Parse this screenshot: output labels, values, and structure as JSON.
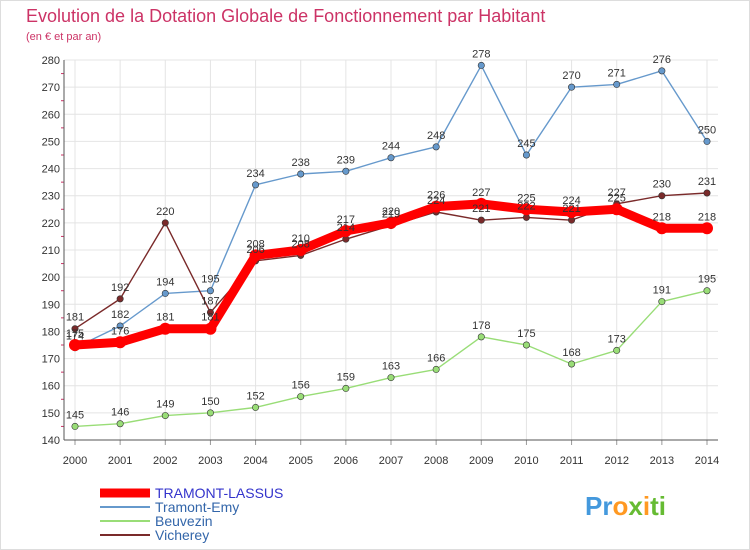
{
  "chart_data": {
    "type": "line",
    "title": "Evolution de la Dotation Globale de Fonctionnement par Habitant",
    "subtitle": "(en € et par an)",
    "xlabel": "",
    "ylabel": "",
    "categories": [
      "2000",
      "2001",
      "2002",
      "2003",
      "2004",
      "2005",
      "2006",
      "2007",
      "2008",
      "2009",
      "2010",
      "2011",
      "2012",
      "2013",
      "2014"
    ],
    "ylim": [
      140,
      280
    ],
    "yticks": [
      140,
      150,
      160,
      170,
      180,
      190,
      200,
      210,
      220,
      230,
      240,
      250,
      260,
      270,
      280
    ],
    "grid": true,
    "legend_position": "bottom-left",
    "series": [
      {
        "name": "TRAMONT-LASSUS",
        "color": "#ff0000",
        "values": [
          175,
          176,
          181,
          181,
          208,
          210,
          217,
          220,
          226,
          227,
          225,
          224,
          225,
          218,
          218
        ]
      },
      {
        "name": "Tramont-Emy",
        "color": "#6699cc",
        "values": [
          174,
          182,
          194,
          195,
          234,
          238,
          239,
          244,
          248,
          278,
          245,
          270,
          271,
          276,
          250
        ]
      },
      {
        "name": "Beuvezin",
        "color": "#99dd77",
        "values": [
          145,
          146,
          149,
          150,
          152,
          156,
          159,
          163,
          166,
          178,
          175,
          168,
          173,
          191,
          195
        ]
      },
      {
        "name": "Vicherey",
        "color": "#7a2a2a",
        "values": [
          181,
          192,
          220,
          187,
          206,
          208,
          214,
          219,
          224,
          221,
          222,
          221,
          227,
          230,
          231
        ]
      }
    ]
  },
  "branding": {
    "logo_parts": [
      "Pr",
      "o",
      "x",
      "i",
      "ti"
    ],
    "logo_colors": [
      "#4499dd",
      "#ff9922",
      "#66bb33",
      "#ff9922",
      "#66bb33"
    ]
  }
}
